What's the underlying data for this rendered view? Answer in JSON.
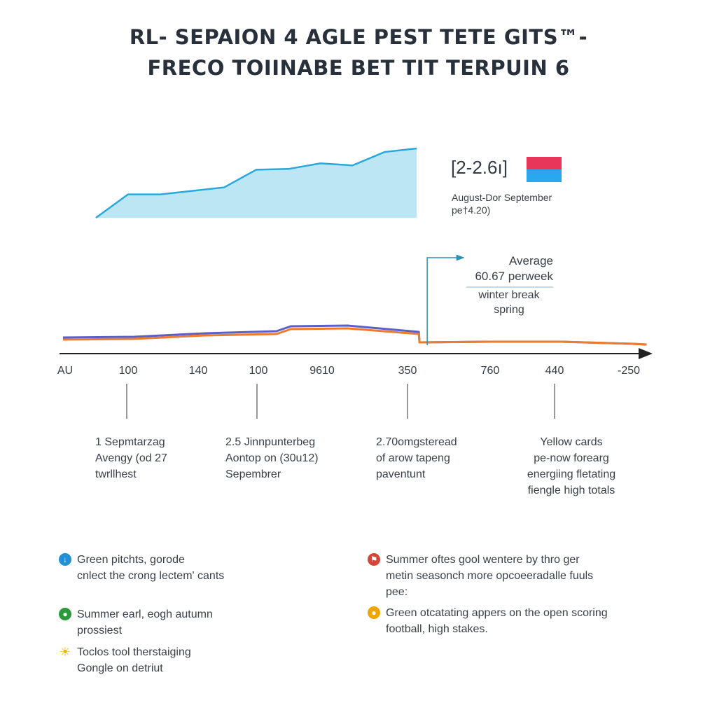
{
  "title": {
    "line1": "RL- SEPAION 4 AGLE PEST TETE GITS™-",
    "line2": "FRECO TOIINABE BET TIT TERPUIN 6"
  },
  "colors": {
    "area_fill": "#bde6f5",
    "area_stroke": "#2aa8dc",
    "series_blue": "#5b5fc7",
    "series_orange": "#ee7b2c",
    "marker_line": "#2b8fb8",
    "axis": "#222222",
    "legend_swatch_top": "#e8365a",
    "legend_swatch_bottom": "#2aa8ee"
  },
  "legend": {
    "value": "[2-2.6ı]",
    "caption_line1": "August-Dor September",
    "caption_line2": "pe†4.20)"
  },
  "average": {
    "label": "Average",
    "value": "60.67 perweek",
    "note_line1": "winter break",
    "note_line2": "spring"
  },
  "annotations": [
    {
      "lines": [
        "1 Sepmtarzag",
        "Avengy (od 27",
        "twrllhest"
      ]
    },
    {
      "lines": [
        "2.5 Jinnpunterbeg",
        "Aontop on (30u12)",
        "Sepembrer"
      ]
    },
    {
      "lines": [
        "2.70omgsteread",
        "of arow tapeng",
        "paventunt"
      ]
    },
    {
      "lines": [
        "Yellow cards",
        "pe-now forearg",
        "energiing fletating",
        "fiengle high totals"
      ]
    }
  ],
  "notes": [
    {
      "icon": "info-icon",
      "color": "#1f8fd6",
      "glyph": "↓",
      "lines": [
        "Green pitchts, gorode",
        "cnlect the crong lectem' cants"
      ]
    },
    {
      "icon": "field-icon",
      "color": "#2a9a3a",
      "glyph": "●",
      "lines": [
        "Summer earl, eogh autumn",
        "prossiest"
      ]
    },
    {
      "icon": "sun-icon",
      "color": "#f2b705",
      "glyph": "☀",
      "lines": [
        "Toclos tool therstaiging",
        "Gongle on detriut"
      ]
    },
    {
      "icon": "flag-icon",
      "color": "#d6453a",
      "glyph": "⚑",
      "lines": [
        "Summer oftes gool wentere by thro ger",
        "metin seasonch more opcoeeradalle fuuls",
        "pee:"
      ]
    },
    {
      "icon": "ball-icon",
      "color": "#f0a500",
      "glyph": "●",
      "lines": [
        "Green otcatating appers on the open scoring",
        "football, high stakes."
      ]
    }
  ],
  "chart_data": [
    {
      "type": "area",
      "title": "",
      "x": [
        0,
        1,
        2,
        3,
        4,
        5,
        6,
        7,
        8,
        9,
        10
      ],
      "values": [
        0.0,
        0.33,
        0.33,
        0.38,
        0.43,
        0.68,
        0.69,
        0.77,
        0.74,
        0.93,
        0.98
      ],
      "ylim": [
        0,
        1
      ],
      "legend": "[2-2.6ı]"
    },
    {
      "type": "line",
      "categories": [
        "AU",
        "100",
        "140",
        "100",
        "9610",
        "350",
        "760",
        "440",
        "-250"
      ],
      "series": [
        {
          "name": "blue",
          "x": [
            0,
            1,
            2,
            3,
            3.2,
            4,
            5,
            5.01,
            6,
            7,
            8,
            8.2
          ],
          "values": [
            23,
            24,
            29,
            32,
            39,
            40,
            31,
            16,
            17,
            17,
            14,
            13
          ]
        },
        {
          "name": "orange",
          "x": [
            0,
            1,
            2,
            3,
            3.2,
            4,
            5,
            5.01,
            6,
            7,
            8,
            8.2
          ],
          "values": [
            20,
            21,
            26,
            28,
            35,
            36,
            28,
            16,
            17,
            17,
            14,
            13
          ]
        }
      ],
      "ylim": [
        0,
        100
      ],
      "marker_at_index": 5,
      "xlabel": "",
      "ylabel": ""
    }
  ]
}
